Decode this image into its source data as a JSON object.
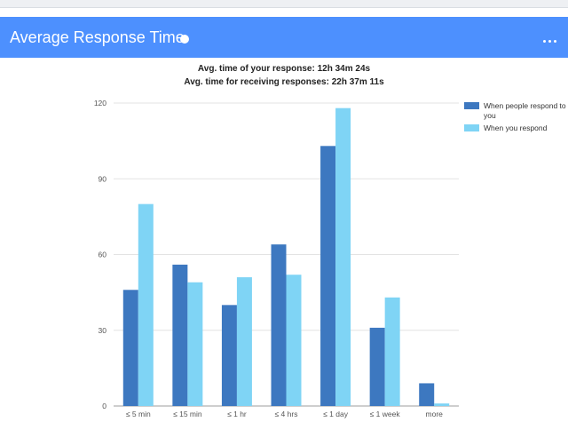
{
  "header": {
    "title": "Average Response Time",
    "info_icon": "info-dot-icon",
    "menu_icon": "more-horizontal-icon",
    "background": "#4d90fe"
  },
  "stats": {
    "line1": "Avg. time of your response: 12h 34m 24s",
    "line2": "Avg. time for receiving responses: 22h 37m 11s"
  },
  "chart_data": {
    "type": "bar",
    "title": "",
    "xlabel": "",
    "ylabel": "",
    "categories": [
      "≤ 5 min",
      "≤ 15 min",
      "≤ 1 hr",
      "≤ 4 hrs",
      "≤ 1 day",
      "≤ 1 week",
      "more"
    ],
    "series": [
      {
        "name": "When people respond to you",
        "color": "#3d78c0",
        "values": [
          46,
          56,
          40,
          64,
          103,
          31,
          9
        ]
      },
      {
        "name": "When you respond",
        "color": "#7fd4f5",
        "values": [
          80,
          49,
          51,
          52,
          118,
          43,
          1
        ]
      }
    ],
    "ylim": [
      0,
      120
    ],
    "yticks": [
      0,
      30,
      60,
      90,
      120
    ],
    "grid": true,
    "legend_position": "right"
  }
}
